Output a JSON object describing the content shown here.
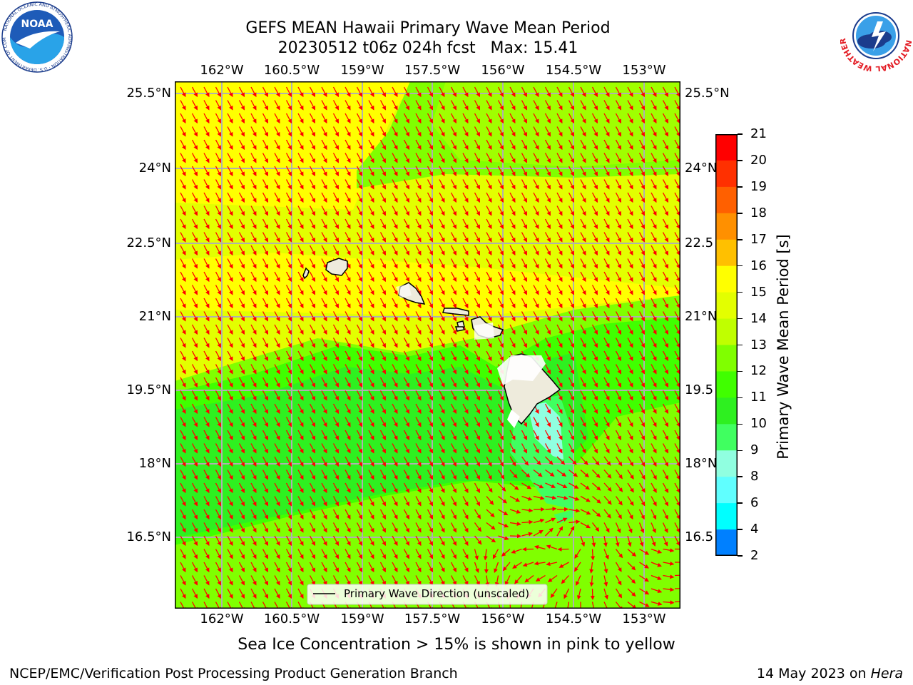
{
  "header": {
    "title_line1": "GEFS MEAN Hawaii Primary Wave Mean Period",
    "title_line2": "20230512 t06z 024h fcst   Max: 15.41"
  },
  "logos": {
    "left_icon": "noaa-logo",
    "left_text": "NOAA",
    "left_ring_text": "NATIONAL OCEANIC AND ATMOSPHERIC ADMINISTRATION · U.S. DEPARTMENT OF COMMERCE",
    "right_icon": "nws-logo",
    "right_ring_text": "NATIONAL WEATHER SERVICE"
  },
  "map": {
    "lon_labels": [
      "162°W",
      "160.5°W",
      "159°W",
      "157.5°W",
      "156°W",
      "154.5°W",
      "153°W"
    ],
    "lat_labels_left": [
      "25.5°N",
      "24°N",
      "22.5°N",
      "21°N",
      "19.5°N",
      "18°N",
      "16.5°N"
    ],
    "lat_labels_right": [
      "25.5°N",
      "24°N",
      "22.5",
      "21°N",
      "19.5",
      "18°N",
      "16.5"
    ],
    "legend_label": "Primary Wave Direction (unscaled)",
    "arrow_color": "#ff0000",
    "land_color": "#eeebdc",
    "dominant_fill": "#e3ff00"
  },
  "colorbar": {
    "label": "Primary Wave Mean Period [s]",
    "ticks": [
      "21",
      "20",
      "19",
      "18",
      "17",
      "16",
      "15",
      "14",
      "13",
      "12",
      "11",
      "10",
      "9",
      "8",
      "6",
      "4",
      "2"
    ],
    "colors": [
      "#ff0000",
      "#ff3000",
      "#ff6000",
      "#ff9000",
      "#ffc000",
      "#ffff00",
      "#e3ff00",
      "#c0ff00",
      "#80ff00",
      "#40ff00",
      "#2ef020",
      "#40ff60",
      "#90ffe0",
      "#60ffff",
      "#00ffff",
      "#0080ff",
      "#0000ff"
    ]
  },
  "notes": {
    "sea_ice": "Sea Ice Concentration > 15% is shown in pink to yellow"
  },
  "footer": {
    "left": "NCEP/EMC/Verification Post Processing Product Generation Branch",
    "right_prefix": "14 May 2023 on ",
    "right_host": "Hera"
  }
}
